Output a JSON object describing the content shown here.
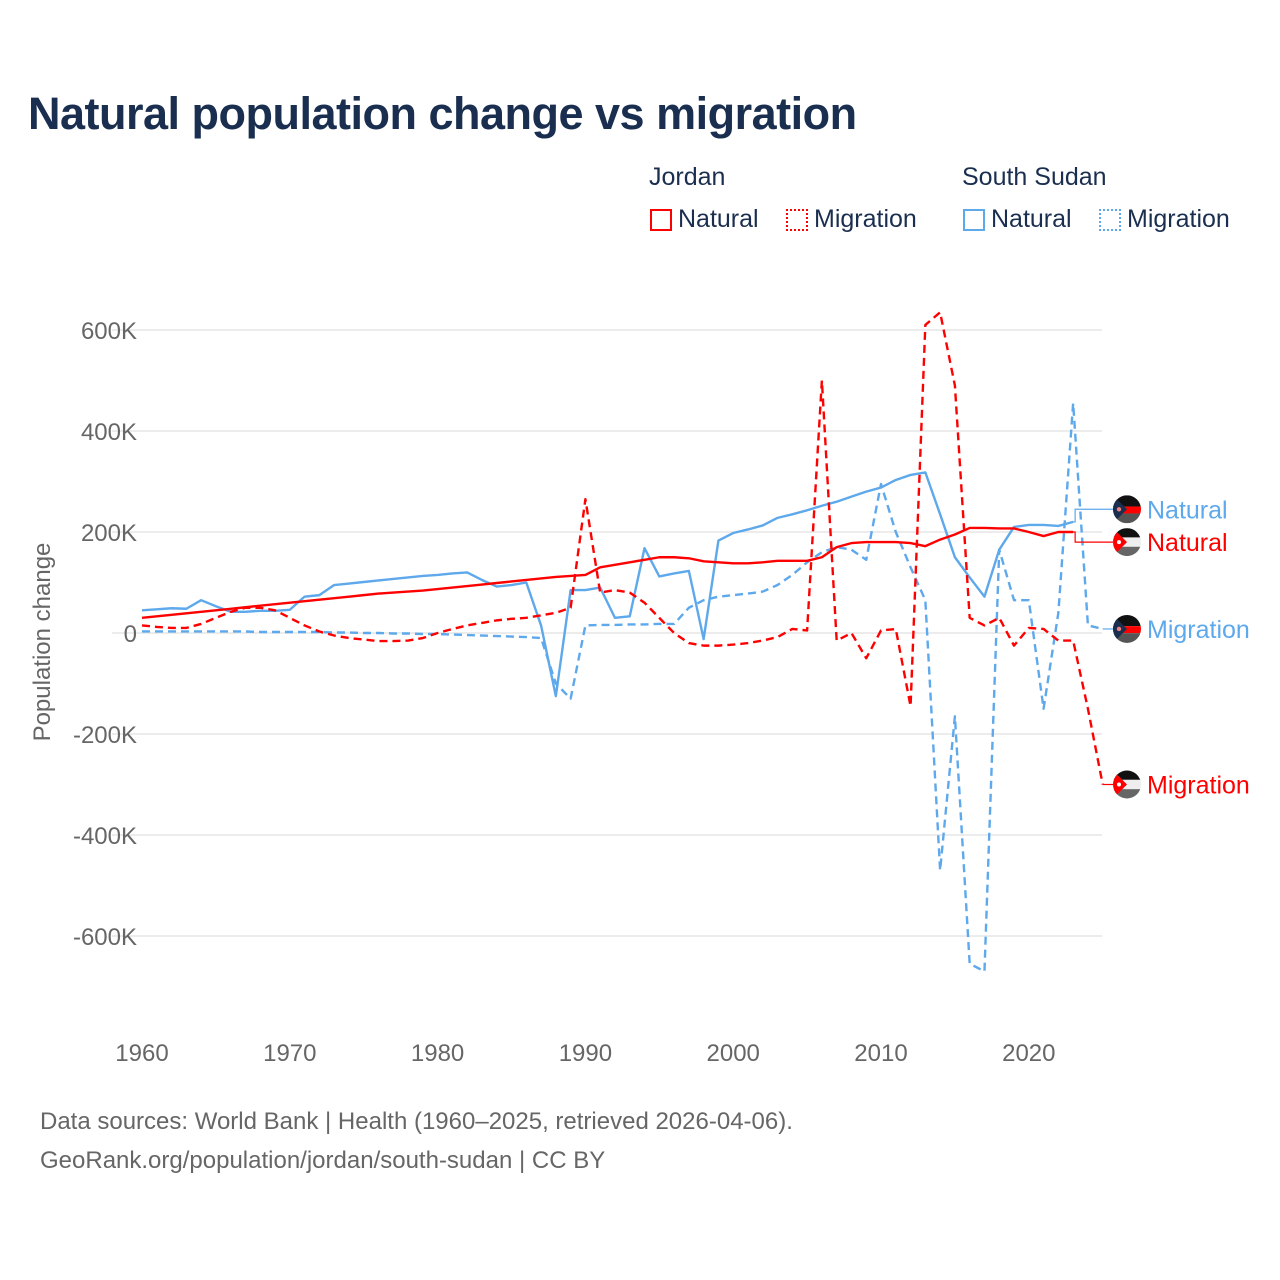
{
  "title": "Natural population change vs migration",
  "legend": {
    "groups": [
      {
        "name": "Jordan",
        "color": "#ff0000",
        "items": [
          "Natural",
          "Migration"
        ]
      },
      {
        "name": "South Sudan",
        "color": "#5ea8ec",
        "items": [
          "Natural",
          "Migration"
        ]
      }
    ]
  },
  "source_line1": "Data sources: World Bank | Health (1960–2025, retrieved 2026-04-06).",
  "source_line2": "GeoRank.org/population/jordan/south-sudan | CC BY",
  "chart_data": {
    "type": "line",
    "title": "Natural population change vs migration",
    "xlabel": "",
    "ylabel": "Population change",
    "xlim": [
      1960,
      2025
    ],
    "ylim": [
      -700000,
      650000
    ],
    "xticks": [
      1960,
      1970,
      1980,
      1990,
      2000,
      2010,
      2020
    ],
    "yticks": [
      600000,
      400000,
      200000,
      0,
      -200000,
      -400000,
      -600000
    ],
    "ytick_labels": [
      "600K",
      "400K",
      "200K",
      "0",
      "-200K",
      "-400K",
      "-600K"
    ],
    "grid": true,
    "series": [
      {
        "name": "Natural",
        "country": "Jordan",
        "color": "#ff0000",
        "dash": false,
        "start_year": 1960,
        "values_k": [
          30,
          33,
          36,
          39,
          42,
          45,
          48,
          51,
          54,
          57,
          60,
          63,
          66,
          69,
          72,
          75,
          78,
          80,
          82,
          84,
          87,
          90,
          93,
          96,
          99,
          102,
          105,
          108,
          111,
          113,
          115,
          130,
          135,
          140,
          145,
          150,
          150,
          148,
          142,
          140,
          138,
          138,
          140,
          143,
          143,
          143,
          150,
          170,
          178,
          180,
          180,
          180,
          178,
          172,
          185,
          195,
          208,
          208,
          207,
          207,
          200,
          192,
          200,
          200
        ]
      },
      {
        "name": "Migration",
        "country": "Jordan",
        "color": "#ff0000",
        "dash": true,
        "start_year": 1960,
        "values_k": [
          15,
          12,
          10,
          10,
          18,
          30,
          42,
          50,
          50,
          45,
          30,
          15,
          3,
          -5,
          -10,
          -13,
          -16,
          -16,
          -15,
          -10,
          0,
          8,
          15,
          20,
          25,
          28,
          30,
          35,
          40,
          50,
          265,
          80,
          85,
          80,
          60,
          30,
          0,
          -20,
          -25,
          -25,
          -23,
          -20,
          -15,
          -8,
          8,
          5,
          500,
          -15,
          0,
          -50,
          5,
          8,
          -145,
          610,
          635,
          490,
          30,
          15,
          30,
          -25,
          10,
          8,
          -15,
          -15,
          -150,
          -300
        ]
      },
      {
        "name": "Natural",
        "country": "South Sudan",
        "color": "#5ea8ec",
        "dash": false,
        "start_year": 1960,
        "values_k": [
          45,
          47,
          49,
          48,
          65,
          53,
          42,
          42,
          44,
          44,
          46,
          72,
          75,
          95,
          98,
          101,
          104,
          107,
          110,
          113,
          115,
          118,
          120,
          105,
          92,
          95,
          100,
          15,
          -125,
          85,
          85,
          90,
          30,
          33,
          168,
          112,
          118,
          123,
          -12,
          183,
          198,
          205,
          213,
          228,
          235,
          243,
          252,
          260,
          270,
          280,
          288,
          303,
          313,
          318,
          235,
          150,
          110,
          72,
          165,
          210,
          214,
          214,
          212,
          220
        ]
      },
      {
        "name": "Migration",
        "country": "South Sudan",
        "color": "#5ea8ec",
        "dash": true,
        "start_year": 1960,
        "values_k": [
          3,
          3,
          3,
          3,
          3,
          3,
          3,
          3,
          2,
          2,
          2,
          2,
          2,
          1,
          1,
          0,
          0,
          -1,
          -1,
          -2,
          -2,
          -3,
          -4,
          -5,
          -6,
          -7,
          -8,
          -10,
          -100,
          -130,
          15,
          16,
          16,
          17,
          17,
          18,
          18,
          50,
          65,
          72,
          75,
          78,
          82,
          95,
          115,
          140,
          160,
          170,
          165,
          145,
          295,
          200,
          130,
          65,
          -470,
          -165,
          -655,
          -670,
          165,
          65,
          65,
          -150,
          40,
          455,
          15,
          8
        ]
      }
    ],
    "end_labels": [
      {
        "text": "Natural",
        "country": "South Sudan",
        "color": "#5ea8ec",
        "at_k": 245
      },
      {
        "text": "Natural",
        "country": "Jordan",
        "color": "#ff0000",
        "at_k": 180
      },
      {
        "text": "Migration",
        "country": "South Sudan",
        "color": "#5ea8ec",
        "at_k": 8
      },
      {
        "text": "Migration",
        "country": "Jordan",
        "color": "#ff0000",
        "at_k": -300
      }
    ]
  }
}
